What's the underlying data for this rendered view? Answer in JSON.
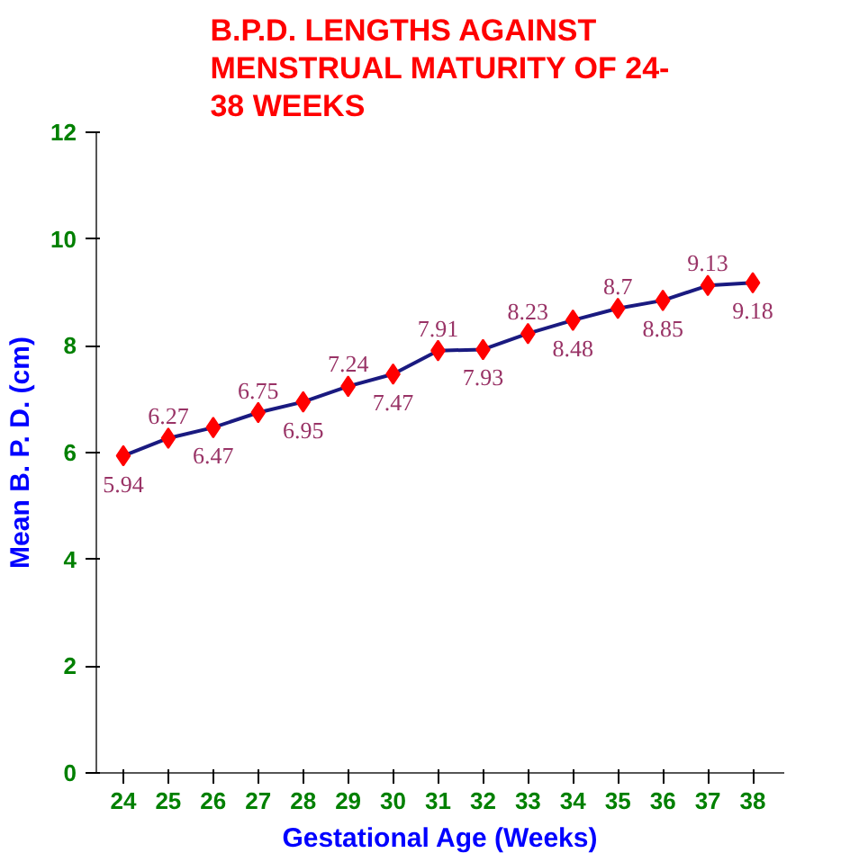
{
  "chart_data": {
    "type": "line",
    "title": "B.P.D. LENGTHS AGAINST\nMENSTRUAL MATURITY OF 24-\n38 WEEKS",
    "xlabel": "Gestational Age (Weeks)",
    "ylabel": "Mean B. P. D. (cm)",
    "categories": [
      "24",
      "25",
      "26",
      "27",
      "28",
      "29",
      "30",
      "31",
      "32",
      "33",
      "34",
      "35",
      "36",
      "37",
      "38"
    ],
    "series": [
      {
        "color": "#1a1a80",
        "colors": [
          "#ff0000",
          "#ff0000",
          "#ff0000",
          "#ff0000",
          "#ff0000",
          "#ff0000",
          "#ff0000",
          "#ff0000",
          "#ff0000",
          "#ff0000",
          "#ff0000",
          "#ff0000",
          "#ff0000",
          "#ff0000",
          "#ff0000"
        ],
        "values": [
          5.94,
          6.27,
          6.47,
          6.75,
          6.95,
          7.24,
          7.47,
          7.91,
          7.93,
          8.23,
          8.48,
          8.7,
          8.85,
          9.13,
          9.18
        ]
      }
    ],
    "ylim": [
      0,
      12
    ],
    "yticks": [
      0,
      2,
      4,
      6,
      8,
      10,
      12
    ],
    "grid": false,
    "marker": "diamond",
    "line_style": "solid",
    "data_labels": true
  }
}
